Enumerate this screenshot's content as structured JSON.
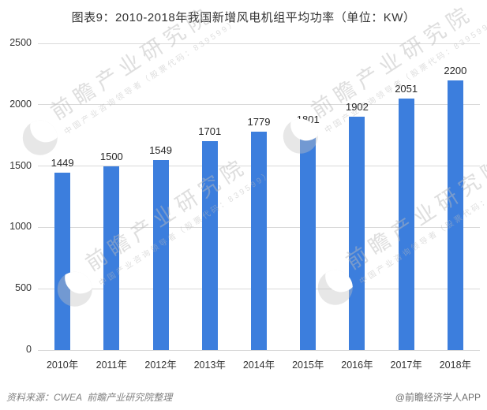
{
  "title": "图表9：2010-2018年我国新增风电机组平均功率（单位：KW）",
  "chart_data": {
    "type": "bar",
    "title": "图表9：2010-2018年我国新增风电机组平均功率（单位：KW）",
    "categories": [
      "2010年",
      "2011年",
      "2012年",
      "2013年",
      "2014年",
      "2015年",
      "2016年",
      "2017年",
      "2018年"
    ],
    "values": [
      1449,
      1500,
      1549,
      1701,
      1779,
      1801,
      1902,
      2051,
      2200
    ],
    "xlabel": "",
    "ylabel": "",
    "ylim": [
      0,
      2500
    ],
    "yticks": [
      0,
      500,
      1000,
      1500,
      2000,
      2500
    ],
    "grid": true,
    "legend": "none",
    "bar_color": "#3c7edd",
    "value_labels_shown": true
  },
  "footer": {
    "source": "资料来源：CWEA  前瞻产业研究院整理",
    "credit": "@前瞻经济学人APP"
  },
  "watermark": {
    "text": "前瞻产业研究院",
    "subtext": "中国产业咨询领导者（股票代码：839599）"
  },
  "colors": {
    "bar": "#3c7edd",
    "gridline": "#d9d9d9",
    "title_text": "#333333",
    "axis_text": "#333333",
    "value_label_text": "#262626",
    "footer_text": "#7f7f7f"
  }
}
